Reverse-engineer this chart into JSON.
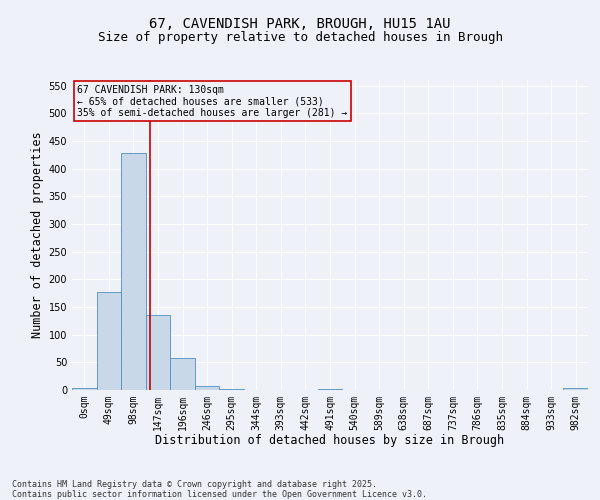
{
  "title_line1": "67, CAVENDISH PARK, BROUGH, HU15 1AU",
  "title_line2": "Size of property relative to detached houses in Brough",
  "xlabel": "Distribution of detached houses by size in Brough",
  "ylabel": "Number of detached properties",
  "footer": "Contains HM Land Registry data © Crown copyright and database right 2025.\nContains public sector information licensed under the Open Government Licence v3.0.",
  "bar_color": "#c8d8e8",
  "bar_edge_color": "#5090c0",
  "vline_color": "#cc0000",
  "vline_position": 2.67,
  "annotation_text": "67 CAVENDISH PARK: 130sqm\n← 65% of detached houses are smaller (533)\n35% of semi-detached houses are larger (281) →",
  "annotation_box_color": "#cc0000",
  "categories": [
    "0sqm",
    "49sqm",
    "98sqm",
    "147sqm",
    "196sqm",
    "246sqm",
    "295sqm",
    "344sqm",
    "393sqm",
    "442sqm",
    "491sqm",
    "540sqm",
    "589sqm",
    "638sqm",
    "687sqm",
    "737sqm",
    "786sqm",
    "835sqm",
    "884sqm",
    "933sqm",
    "982sqm"
  ],
  "values": [
    3,
    177,
    428,
    135,
    58,
    8,
    1,
    0,
    0,
    0,
    1,
    0,
    0,
    0,
    0,
    0,
    0,
    0,
    0,
    0,
    3
  ],
  "ylim": [
    0,
    560
  ],
  "yticks": [
    0,
    50,
    100,
    150,
    200,
    250,
    300,
    350,
    400,
    450,
    500,
    550
  ],
  "background_color": "#eef2f8",
  "grid_color": "#ffffff",
  "title_fontsize": 10,
  "subtitle_fontsize": 9,
  "tick_fontsize": 7,
  "label_fontsize": 8.5,
  "footer_fontsize": 6,
  "annotation_fontsize": 7
}
